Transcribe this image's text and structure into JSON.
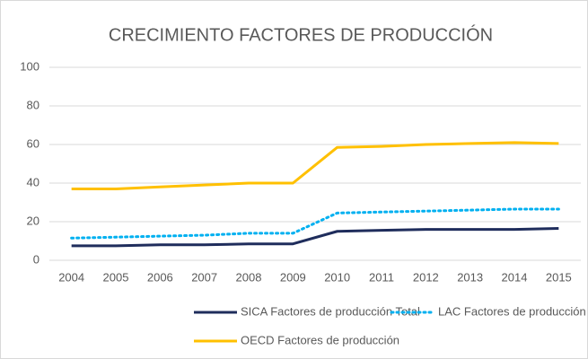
{
  "chart_data": {
    "type": "line",
    "title": "CRECIMIENTO FACTORES DE PRODUCCIÓN",
    "categories": [
      "2004",
      "2005",
      "2006",
      "2007",
      "2008",
      "2009",
      "2010",
      "2011",
      "2012",
      "2013",
      "2014",
      "2015"
    ],
    "series": [
      {
        "name": "SICA Factores de producción Total",
        "color": "#1f2d5c",
        "style": "solid",
        "values": [
          7.5,
          7.5,
          8,
          8,
          8.5,
          8.5,
          15,
          15.5,
          16,
          16,
          16,
          16.5
        ]
      },
      {
        "name": "LAC Factores de producción",
        "color": "#00b0f0",
        "style": "dotted",
        "values": [
          11.5,
          12,
          12.5,
          13,
          14,
          14,
          24.5,
          25,
          25.5,
          26,
          26.5,
          26.5
        ]
      },
      {
        "name": "OECD Factores de producción",
        "color": "#ffc000",
        "style": "solid",
        "values": [
          37,
          37,
          38,
          39,
          40,
          40,
          58.5,
          59,
          60,
          60.5,
          61,
          60.5
        ]
      }
    ],
    "ylim": [
      0,
      100
    ],
    "yticks": [
      0,
      20,
      40,
      60,
      80,
      100
    ],
    "grid": true,
    "legend": "bottom"
  }
}
